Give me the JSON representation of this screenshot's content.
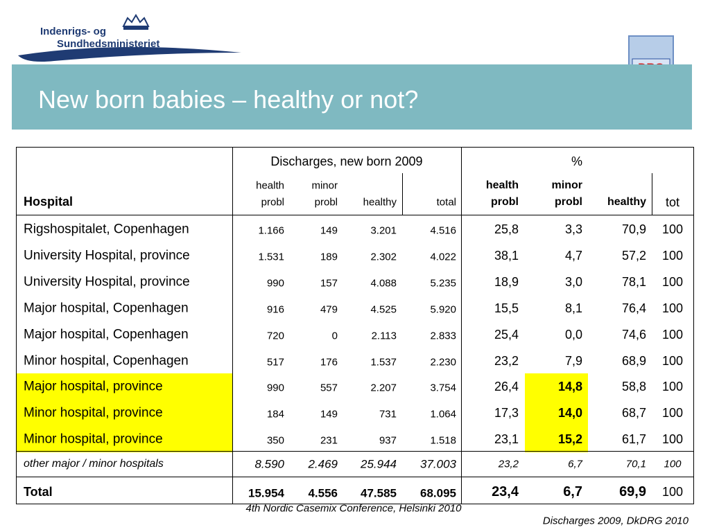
{
  "logo": {
    "line1": "Indenrigs- og",
    "line2": "Sundhedsministeriet"
  },
  "drg_logo": "DRG",
  "title": "New born babies – healthy or not?",
  "table": {
    "group_headers": [
      "Discharges, new born 2009",
      "%"
    ],
    "hospital_header": "Hospital",
    "headers": [
      [
        "health",
        "probl"
      ],
      [
        "minor",
        "probl"
      ],
      [
        "healthy"
      ],
      [
        "total"
      ],
      [
        "health",
        "probl"
      ],
      [
        "minor",
        "probl"
      ],
      [
        "healthy"
      ],
      [
        "tot"
      ]
    ],
    "rows": [
      [
        "Rigshospitalet, Copenhagen",
        "1.166",
        "149",
        "3.201",
        "4.516",
        "25,8",
        "3,3",
        "70,9",
        "100"
      ],
      [
        "University Hospital, province",
        "1.531",
        "189",
        "2.302",
        "4.022",
        "38,1",
        "4,7",
        "57,2",
        "100"
      ],
      [
        "University Hospital, province",
        "990",
        "157",
        "4.088",
        "5.235",
        "18,9",
        "3,0",
        "78,1",
        "100"
      ],
      [
        "Major hospital, Copenhagen",
        "916",
        "479",
        "4.525",
        "5.920",
        "15,5",
        "8,1",
        "76,4",
        "100"
      ],
      [
        "Major hospital, Copenhagen",
        "720",
        "0",
        "2.113",
        "2.833",
        "25,4",
        "0,0",
        "74,6",
        "100"
      ],
      [
        "Minor hospital, Copenhagen",
        "517",
        "176",
        "1.537",
        "2.230",
        "23,2",
        "7,9",
        "68,9",
        "100"
      ],
      [
        "Major hospital, province",
        "990",
        "557",
        "2.207",
        "3.754",
        "26,4",
        "14,8",
        "58,8",
        "100"
      ],
      [
        "Minor hospital, province",
        "184",
        "149",
        "731",
        "1.064",
        "17,3",
        "14,0",
        "68,7",
        "100"
      ],
      [
        "Minor hospital, province",
        "350",
        "231",
        "937",
        "1.518",
        "23,1",
        "15,2",
        "61,7",
        "100"
      ]
    ],
    "other": [
      "other major / minor hospitals",
      "8.590",
      "2.469",
      "25.944",
      "37.003",
      "23,2",
      "6,7",
      "70,1",
      "100"
    ],
    "total": [
      "Total",
      "15.954",
      "4.556",
      "47.585",
      "68.095",
      "23,4",
      "6,7",
      "69,9",
      "100"
    ]
  },
  "footer": {
    "conference": "4th Nordic Casemix Conference, Helsinki 2010",
    "source": "Discharges 2009, DkDRG 2010"
  }
}
